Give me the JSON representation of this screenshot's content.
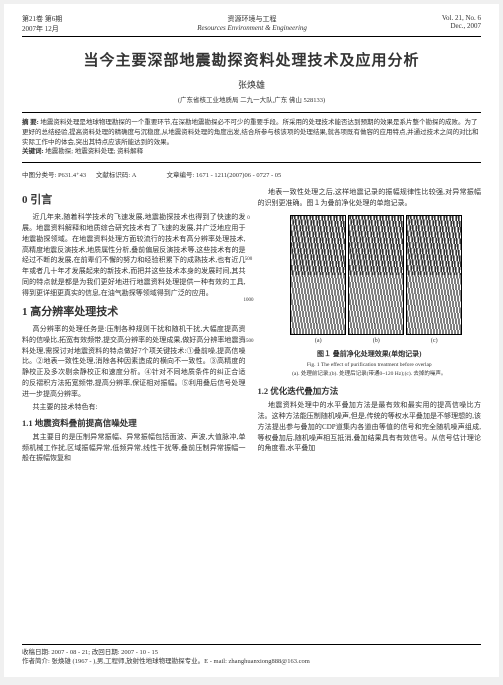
{
  "watermark": "资源共享",
  "header": {
    "left_line1": "第21卷 第6期",
    "left_line2": "2007年 12月",
    "center_line1": "资源环境与工程",
    "center_line2": "Resources Environment & Engineering",
    "right_line1": "Vol. 21, No. 6",
    "right_line2": "Dec., 2007"
  },
  "title": "当今主要深部地震勘探资料处理技术及应用分析",
  "author": "张焕雄",
  "affiliation": "(广东省核工业地质局 二九一大队,广东 佛山 528133)",
  "abstract": {
    "label": "摘 要:",
    "text": "地震资料处理是地球物理勘探的一个重要环节,在深勘地震勘探必不可少的重要手段。所采用的处理技术能否达到预期的效果是系片整个勘探的成败。为了更好的总结经验,提高资料处理的精确度与沉稳度,从地震资料处理的角度出发,结合所参与核该项的处理结果,就各项既有做容的应用特点,并通过技术之间的对比和实际工作中的体会,突出其特点应该所能达到的效果。"
  },
  "keywords": {
    "label": "关键词:",
    "text": "地震勘探; 地震资料处理; 资料解释"
  },
  "meta": {
    "clc_label": "中图分类号:",
    "clc": "P631.4⁺43",
    "doc_label": "文献标识码:",
    "doc_code": "A",
    "article_label": "文章编号:",
    "article_id": "1671 - 1211(2007)06 - 0727 - 05"
  },
  "left_col": {
    "sec0_title": "0 引言",
    "sec0_p1": "近几年来,随着科学技术的飞速发展,地震勘探技术也得到了快速的发展。地震资料解释和地质综合研究技术有了飞速的发展,并广泛地应用于地震勘探领域。在地震资料处理方面较流行的技术有高分辨率处理技术,高精度地震反演技术,地质属性分析,叠前偏层反演技术等,这些技术有的是经过不断的发展,在前辈们不懈的努力和经验积累下的成熟技术,也有近几年或者几十年才发展起来的新技术,而把并这些技术本身的发展时间,其共同的特点就是都是为我们更好地进行地震资料处理提供一种有效的工具,得到更详细更真实的信息,在油气勘探等领域得到广泛的应用。",
    "sec1_title": "1 高分辨率处理技术",
    "sec1_p1": "高分辨率的处理任务是:压制各种规则干扰和随机干扰,大幅度提高资料的信噪比,拓宽有效频带,提交高分辨率的处理成果,做好高分辨率地震资料处理,需探讨对地震资料的特点做好7个项关键技术:①叠前噪,提高信噪比。②地表一致性处理,消除各种因素造成的横向不一致性。③高精度的静校正及多次剔余静校正和速度分析。④针对不同地质条件的纠正合适的反褶积方法拓宽频带,提高分辨率,保证相对振幅。⑤利用叠后信号处理进一步提高分辨率。",
    "sec1_p2": "共主要的技术特色有:",
    "sub11_title": "1.1 地震资料叠前提高信噪处理",
    "sub11_p1": "其主要目的是压制异常振幅、异常振幅包括面波、声波,大值脉冲,单频机械工作扰,区域振幅异常,低频异常,线性干扰等,叠前压制异常振幅一般在振幅恢复和"
  },
  "right_col": {
    "top_p": "地表一致性处理之后,这样地震记录的振幅规律性比较强,对异常振幅的识别更准确。图１为叠前净化处理的单炮记录。",
    "figure": {
      "y_ticks": [
        "0",
        "500",
        "1000",
        "1500"
      ],
      "sublabels": [
        "(a)",
        "(b)",
        "(c)"
      ],
      "caption_cn": "图１ 叠前净化处理效果(单炮记录)",
      "caption_en": "Fig. 1  The effect of purification treatment before overlap",
      "caption_note": "(a). 处理前记录;(b). 处理后记录(带通0~120 Hz);(c). 去掉的噪声。"
    },
    "sub12_title": "1.2 优化迭代叠加方法",
    "sec12_p1": "地震资料处理中的水平叠加方法是最有效和最实用的提高信噪比方法。这种方法能压制随机噪声,但是,传统的等权水平叠加是不够理想的,该方法提出参与叠加的CDP道集内各道由等值的信号和完全随机噪声组成,等权叠加后,随机噪声相互抵消,叠加结果具有有效信号。从信号估计理论的角度看,水平叠加"
  },
  "footer": {
    "received": "收稿日期: 2007 - 08 - 21; 改回日期: 2007 - 10 - 15",
    "author_info": "作者简介: 张焕雄 (1967 - ),男,工程师,放射性地球物理勘探专业。E - mail: zhanghuanxiong888@163.com"
  }
}
